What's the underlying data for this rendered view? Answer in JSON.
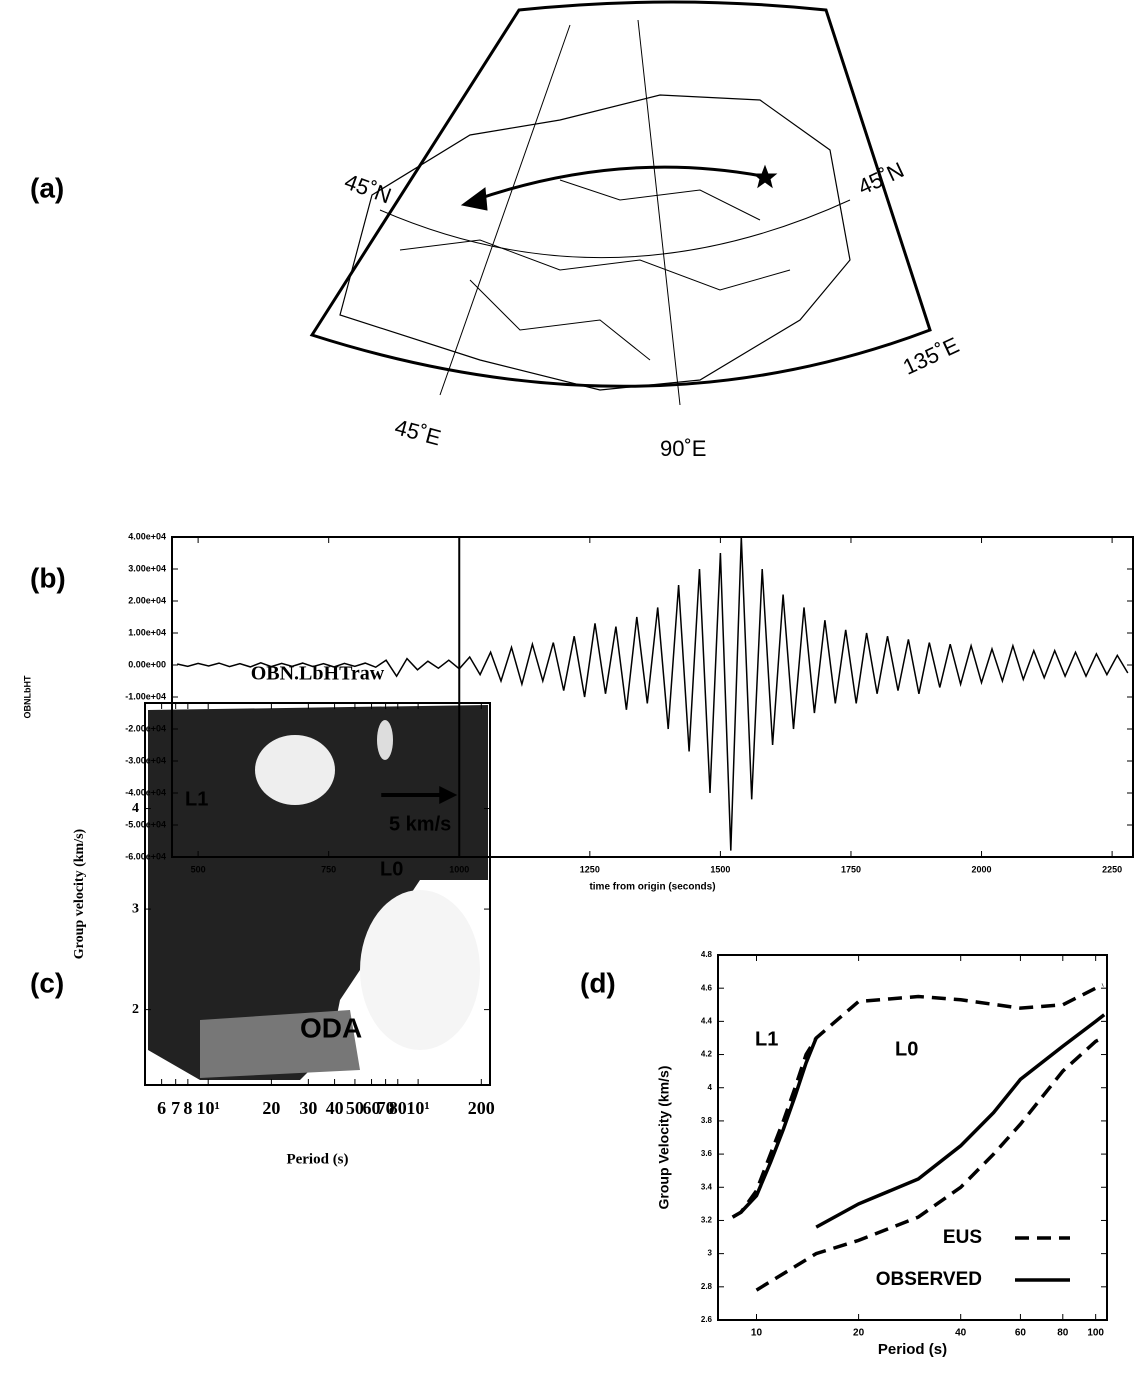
{
  "map": {
    "panel": "(a)",
    "labels": [
      "45˚N",
      "45˚N",
      "45˚E",
      "90˚E",
      "135˚E"
    ]
  },
  "chart_data": [
    {
      "type": "line",
      "panel": "(b)",
      "ylabel": "OBNLbHT",
      "xlabel": "time from origin (seconds)",
      "xlim": [
        450,
        2290
      ],
      "xticks": [
        500,
        750,
        1000,
        1250,
        1500,
        1750,
        2000,
        2250
      ],
      "ylim": [
        -60000,
        40000
      ],
      "yticks": [
        {
          "value": -60000,
          "label": "-6.00e+04"
        },
        {
          "value": -50000,
          "label": "-5.00e+04"
        },
        {
          "value": -40000,
          "label": "-4.00e+04"
        },
        {
          "value": -30000,
          "label": "-3.00e+04"
        },
        {
          "value": -20000,
          "label": "-2.00e+04"
        },
        {
          "value": -10000,
          "label": "-1.00e+04"
        },
        {
          "value": 0,
          "label": "0.00e+00"
        },
        {
          "value": 10000,
          "label": "1.00e+04"
        },
        {
          "value": 20000,
          "label": "2.00e+04"
        },
        {
          "value": 30000,
          "label": "3.00e+04"
        },
        {
          "value": 40000,
          "label": "4.00e+04"
        }
      ],
      "markers": [
        {
          "x": 1000,
          "label": "5 km/s"
        }
      ],
      "series": [
        {
          "color": "#000000",
          "x": [
            460,
            480,
            500,
            520,
            540,
            560,
            580,
            600,
            620,
            640,
            660,
            680,
            700,
            720,
            740,
            760,
            780,
            800,
            820,
            840,
            860,
            880,
            900,
            920,
            940,
            960,
            980,
            1000,
            1020,
            1040,
            1060,
            1080,
            1100,
            1120,
            1140,
            1160,
            1180,
            1200,
            1220,
            1240,
            1260,
            1280,
            1300,
            1320,
            1340,
            1360,
            1380,
            1400,
            1420,
            1440,
            1460,
            1480,
            1500,
            1520,
            1540,
            1560,
            1580,
            1600,
            1620,
            1640,
            1660,
            1680,
            1700,
            1720,
            1740,
            1760,
            1780,
            1800,
            1820,
            1840,
            1860,
            1880,
            1900,
            1920,
            1940,
            1960,
            1980,
            2000,
            2020,
            2040,
            2060,
            2080,
            2100,
            2120,
            2140,
            2160,
            2180,
            2200,
            2220,
            2240,
            2260,
            2280
          ],
          "values": [
            300,
            -400,
            500,
            -300,
            600,
            -500,
            400,
            -600,
            700,
            -500,
            500,
            -400,
            600,
            -500,
            400,
            -600,
            500,
            -400,
            600,
            -700,
            1500,
            -3500,
            2000,
            -1500,
            1200,
            -1000,
            1500,
            -1200,
            2500,
            -3000,
            4000,
            -5000,
            5500,
            -6000,
            6500,
            -5000,
            7000,
            -8000,
            9000,
            -10000,
            13000,
            -9000,
            12000,
            -14000,
            15000,
            -12000,
            18000,
            -20000,
            25000,
            -27000,
            30000,
            -40000,
            35000,
            -58000,
            40000,
            -42000,
            30000,
            -25000,
            22000,
            -20000,
            18000,
            -15000,
            14000,
            -12000,
            11000,
            -12000,
            10000,
            -9000,
            9000,
            -8000,
            8000,
            -9000,
            7000,
            -7000,
            6500,
            -6000,
            6000,
            -5500,
            5000,
            -5000,
            6000,
            -4500,
            4500,
            -4000,
            4500,
            -3500,
            4000,
            -3500,
            3500,
            -3000,
            3000,
            -2500
          ]
        }
      ]
    },
    {
      "type": "heatmap",
      "panel": "(c)",
      "title": "OBN.LbHTraw",
      "ylabel": "Group velocity (km/s)",
      "xlabel": "Period (s)",
      "log_x": true,
      "xlim": [
        5,
        220
      ],
      "ylim": [
        1.25,
        5.05
      ],
      "yticks": [
        2,
        3,
        4
      ],
      "xticks": [
        6,
        7,
        8,
        {
          "value": 10,
          "label": "10¹"
        },
        20,
        30,
        40,
        50,
        60,
        70,
        80,
        {
          "value": 100,
          "label": "10¹"
        },
        200
      ],
      "annotations": [
        "L1",
        "L0",
        "ODA"
      ]
    },
    {
      "type": "line",
      "panel": "(d)",
      "ylabel": "Group Velocity (km/s)",
      "xlabel": "Period (s)",
      "log_x": true,
      "xlim": [
        7.7,
        108
      ],
      "xticks": [
        10,
        20,
        40,
        60,
        80,
        100
      ],
      "ylim": [
        2.6,
        4.8
      ],
      "yticks": [
        2.6,
        2.8,
        3,
        3.2,
        3.4,
        3.6,
        3.8,
        4,
        4.2,
        4.4,
        4.6,
        4.8
      ],
      "annotations": [
        "L1",
        "L0"
      ],
      "series": [
        {
          "name": "EUS",
          "color": "#000000",
          "dash": true,
          "x": [
            8.5,
            9,
            10,
            11,
            12,
            13,
            14,
            15,
            20,
            30,
            40,
            60,
            80,
            100,
            105,
            null,
            10,
            15,
            20,
            30,
            40,
            50,
            60,
            80,
            100,
            105
          ],
          "values": [
            3.22,
            3.25,
            3.38,
            3.6,
            3.8,
            4.0,
            4.2,
            4.3,
            4.52,
            4.55,
            4.53,
            4.48,
            4.5,
            4.6,
            4.62,
            null,
            2.78,
            3.0,
            3.08,
            3.22,
            3.4,
            3.6,
            3.78,
            4.1,
            4.28,
            4.3
          ]
        },
        {
          "name": "OBSERVED",
          "color": "#000000",
          "dash": false,
          "x": [
            8.5,
            9,
            10,
            11,
            12,
            13,
            14,
            15,
            null,
            15,
            20,
            30,
            40,
            50,
            60,
            80,
            100,
            106
          ],
          "values": [
            3.22,
            3.25,
            3.35,
            3.55,
            3.75,
            3.95,
            4.15,
            4.3,
            null,
            3.16,
            3.3,
            3.45,
            3.65,
            3.85,
            4.05,
            4.25,
            4.4,
            4.44
          ]
        }
      ]
    }
  ]
}
